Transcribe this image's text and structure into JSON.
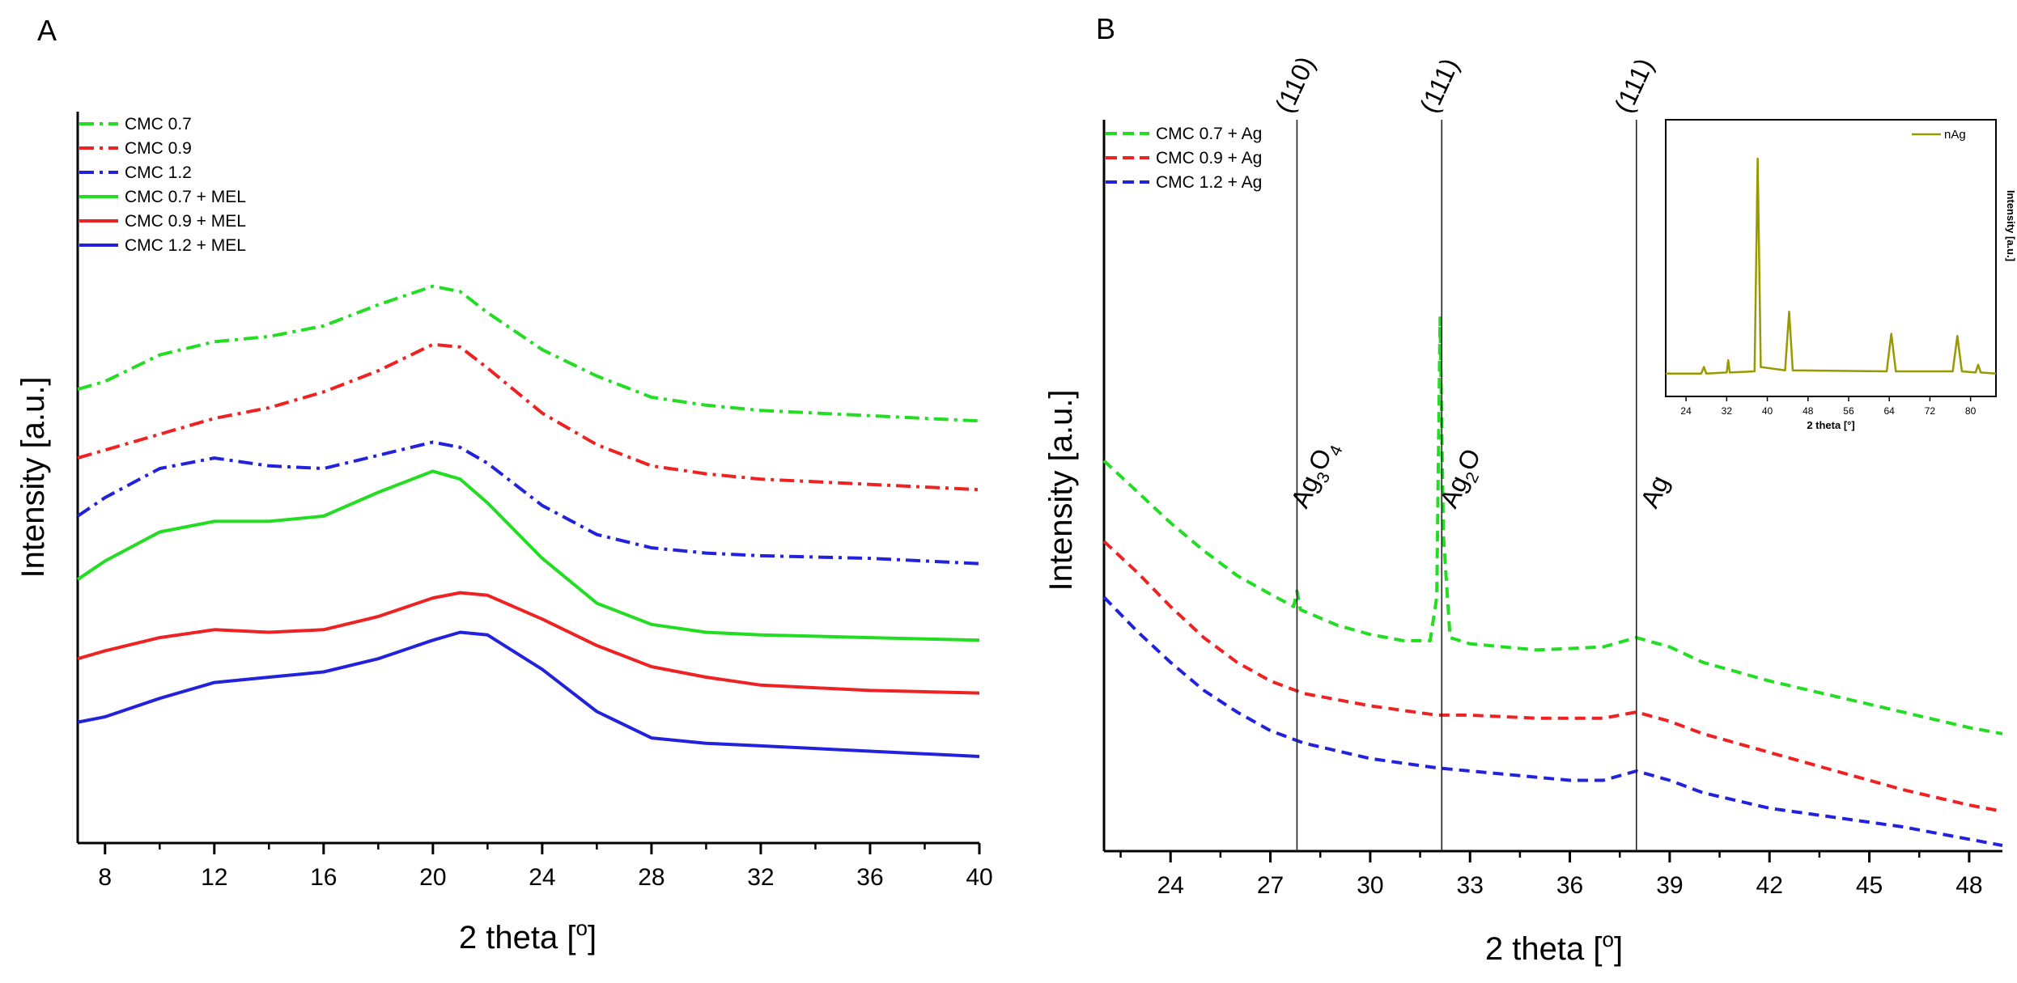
{
  "colors": {
    "green": "#22dd22",
    "red": "#ee2222",
    "blue": "#2222dd",
    "olive": "#999900",
    "axis": "#000000"
  },
  "chart_data": [
    {
      "panel_label": "A",
      "type": "line",
      "xlabel": "2 theta [",
      "xunit_sup": "o",
      "xlabel_tail": "]",
      "ylabel": "Intensity [a.u.]",
      "xlim": [
        7,
        40
      ],
      "ylim": [
        0,
        100
      ],
      "x_ticks": [
        "8",
        "12",
        "16",
        "20",
        "24",
        "28",
        "32",
        "36",
        "40"
      ],
      "series": [
        {
          "name": "CMC 0.7",
          "style": "dashdot",
          "color": "green",
          "points": [
            [
              7,
              69.5
            ],
            [
              8,
              71
            ],
            [
              10,
              76
            ],
            [
              12,
              78.5
            ],
            [
              14,
              79.5
            ],
            [
              16,
              81.5
            ],
            [
              18,
              85.5
            ],
            [
              20,
              89
            ],
            [
              21,
              88
            ],
            [
              22,
              84
            ],
            [
              24,
              77
            ],
            [
              26,
              72
            ],
            [
              28,
              68
            ],
            [
              30,
              66.5
            ],
            [
              32,
              65.5
            ],
            [
              36,
              64.5
            ],
            [
              40,
              63.5
            ]
          ]
        },
        {
          "name": "CMC 0.9",
          "style": "dashdot",
          "color": "red",
          "points": [
            [
              7,
              56.5
            ],
            [
              8,
              58
            ],
            [
              10,
              61
            ],
            [
              12,
              64
            ],
            [
              14,
              66
            ],
            [
              16,
              69
            ],
            [
              18,
              73
            ],
            [
              20,
              78
            ],
            [
              21,
              77.5
            ],
            [
              22,
              73.5
            ],
            [
              24,
              65
            ],
            [
              26,
              59
            ],
            [
              28,
              55
            ],
            [
              30,
              53.5
            ],
            [
              32,
              52.5
            ],
            [
              36,
              51.5
            ],
            [
              40,
              50.5
            ]
          ]
        },
        {
          "name": "CMC 1.2",
          "style": "dashdot",
          "color": "blue",
          "points": [
            [
              7,
              45.5
            ],
            [
              8,
              49
            ],
            [
              10,
              54.5
            ],
            [
              12,
              56.5
            ],
            [
              14,
              55
            ],
            [
              16,
              54.5
            ],
            [
              18,
              57
            ],
            [
              20,
              59.5
            ],
            [
              21,
              58.5
            ],
            [
              22,
              55.5
            ],
            [
              24,
              47.5
            ],
            [
              26,
              42
            ],
            [
              28,
              39.5
            ],
            [
              30,
              38.5
            ],
            [
              32,
              38
            ],
            [
              36,
              37.5
            ],
            [
              40,
              36.5
            ]
          ]
        },
        {
          "name": "CMC 0.7 + MEL",
          "style": "solid",
          "color": "green",
          "points": [
            [
              7,
              33.5
            ],
            [
              8,
              37
            ],
            [
              10,
              42.5
            ],
            [
              12,
              44.5
            ],
            [
              14,
              44.5
            ],
            [
              16,
              45.5
            ],
            [
              18,
              50
            ],
            [
              20,
              54
            ],
            [
              21,
              52.5
            ],
            [
              22,
              48
            ],
            [
              24,
              37.5
            ],
            [
              26,
              29
            ],
            [
              28,
              25
            ],
            [
              30,
              23.5
            ],
            [
              32,
              23
            ],
            [
              36,
              22.5
            ],
            [
              40,
              22
            ]
          ]
        },
        {
          "name": "CMC 0.9 + MEL",
          "style": "solid",
          "color": "red",
          "points": [
            [
              7,
              18.5
            ],
            [
              8,
              20
            ],
            [
              10,
              22.5
            ],
            [
              12,
              24
            ],
            [
              14,
              23.5
            ],
            [
              16,
              24
            ],
            [
              18,
              26.5
            ],
            [
              20,
              30
            ],
            [
              21,
              31
            ],
            [
              22,
              30.5
            ],
            [
              24,
              26
            ],
            [
              26,
              21
            ],
            [
              28,
              17
            ],
            [
              30,
              15
            ],
            [
              32,
              13.5
            ],
            [
              36,
              12.5
            ],
            [
              40,
              12
            ]
          ]
        },
        {
          "name": "CMC 1.2 + MEL",
          "style": "solid",
          "color": "blue",
          "points": [
            [
              7,
              6.5
            ],
            [
              8,
              7.5
            ],
            [
              10,
              11
            ],
            [
              12,
              14
            ],
            [
              14,
              15
            ],
            [
              16,
              16
            ],
            [
              18,
              18.5
            ],
            [
              20,
              22
            ],
            [
              21,
              23.5
            ],
            [
              22,
              23
            ],
            [
              24,
              16.5
            ],
            [
              26,
              8.5
            ],
            [
              28,
              3.5
            ],
            [
              30,
              2.5
            ],
            [
              32,
              2
            ],
            [
              36,
              1
            ],
            [
              40,
              0
            ]
          ]
        }
      ]
    },
    {
      "panel_label": "B",
      "type": "line",
      "xlabel": "2 theta [",
      "xunit_sup": "o",
      "xlabel_tail": "]",
      "ylabel": "Intensity [a.u.]",
      "xlim": [
        22,
        49
      ],
      "ylim": [
        0,
        100
      ],
      "x_ticks": [
        "24",
        "27",
        "30",
        "33",
        "36",
        "39",
        "42",
        "45",
        "48"
      ],
      "series": [
        {
          "name": "CMC 0.7 + Ag",
          "style": "dash",
          "color": "green",
          "points": [
            [
              22,
              62
            ],
            [
              23,
              57
            ],
            [
              24,
              52
            ],
            [
              25,
              47.5
            ],
            [
              26,
              43.5
            ],
            [
              27,
              40.5
            ],
            [
              27.7,
              38.5
            ],
            [
              27.8,
              41
            ],
            [
              27.9,
              38
            ],
            [
              29,
              35.5
            ],
            [
              30,
              34
            ],
            [
              31,
              33
            ],
            [
              31.8,
              33
            ],
            [
              32,
              40
            ],
            [
              32.1,
              85
            ],
            [
              32.2,
              50
            ],
            [
              32.4,
              33.5
            ],
            [
              33,
              32.5
            ],
            [
              35,
              31.5
            ],
            [
              37,
              32
            ],
            [
              38,
              33.5
            ],
            [
              39,
              32
            ],
            [
              40,
              29.5
            ],
            [
              42,
              26.5
            ],
            [
              44,
              24
            ],
            [
              46,
              21.5
            ],
            [
              48,
              19
            ],
            [
              49,
              18
            ]
          ]
        },
        {
          "name": "CMC 0.9 + Ag",
          "style": "dash",
          "color": "red",
          "points": [
            [
              22,
              49
            ],
            [
              23,
              44
            ],
            [
              24,
              38.5
            ],
            [
              25,
              33.5
            ],
            [
              26,
              29.5
            ],
            [
              27,
              26.5
            ],
            [
              28,
              24.5
            ],
            [
              30,
              22.5
            ],
            [
              32,
              21
            ],
            [
              33,
              21
            ],
            [
              35,
              20.5
            ],
            [
              37,
              20.5
            ],
            [
              38,
              21.5
            ],
            [
              39,
              20
            ],
            [
              40,
              18
            ],
            [
              42,
              15
            ],
            [
              44,
              12
            ],
            [
              46,
              9
            ],
            [
              48,
              6.5
            ],
            [
              49,
              5.5
            ]
          ]
        },
        {
          "name": "CMC 1.2 + Ag",
          "style": "dash",
          "color": "blue",
          "points": [
            [
              22,
              40
            ],
            [
              23,
              34.5
            ],
            [
              24,
              29.5
            ],
            [
              25,
              25
            ],
            [
              26,
              21.5
            ],
            [
              27,
              18.5
            ],
            [
              28,
              16.5
            ],
            [
              30,
              14
            ],
            [
              32,
              12.5
            ],
            [
              34,
              11.5
            ],
            [
              36,
              10.5
            ],
            [
              37,
              10.5
            ],
            [
              38,
              12
            ],
            [
              39,
              10.5
            ],
            [
              40,
              8.5
            ],
            [
              42,
              6
            ],
            [
              44,
              4.5
            ],
            [
              46,
              3
            ],
            [
              48,
              1
            ],
            [
              49,
              0
            ]
          ]
        }
      ],
      "reference_lines": [
        {
          "x": 27.8,
          "hkl": "(110)",
          "phase_main": "Ag",
          "phase_sub1": "3",
          "phase_mid": "O",
          "phase_sub2": "4"
        },
        {
          "x": 32.15,
          "hkl": "(111)",
          "phase_main": "Ag",
          "phase_sub1": "2",
          "phase_mid": "O",
          "phase_sub2": ""
        },
        {
          "x": 38.0,
          "hkl": "(111)",
          "phase_main": "Ag",
          "phase_sub1": "",
          "phase_mid": "",
          "phase_sub2": ""
        }
      ],
      "inset": {
        "type": "line",
        "legend": "nAg",
        "xlabel": "2 theta [°]",
        "ylabel": "Intensity [a.u.]",
        "xlim": [
          20,
          85
        ],
        "ylim": [
          0,
          100
        ],
        "x_ticks": [
          "24",
          "32",
          "40",
          "48",
          "56",
          "64",
          "72",
          "80"
        ],
        "series": [
          {
            "name": "nAg",
            "color": "olive",
            "points": [
              [
                20,
                3
              ],
              [
                27,
                3
              ],
              [
                27.5,
                6
              ],
              [
                28,
                3
              ],
              [
                32,
                3.5
              ],
              [
                32.3,
                9
              ],
              [
                32.6,
                3.5
              ],
              [
                37.5,
                4
              ],
              [
                38.1,
                100
              ],
              [
                38.7,
                6
              ],
              [
                43.5,
                4.5
              ],
              [
                44.3,
                31
              ],
              [
                45,
                4.5
              ],
              [
                63.5,
                4
              ],
              [
                64.4,
                21
              ],
              [
                65.3,
                4
              ],
              [
                76.5,
                4
              ],
              [
                77.4,
                20
              ],
              [
                78.3,
                4
              ],
              [
                81,
                3.5
              ],
              [
                81.5,
                7
              ],
              [
                82,
                3.5
              ],
              [
                85,
                3
              ]
            ]
          }
        ]
      }
    }
  ]
}
